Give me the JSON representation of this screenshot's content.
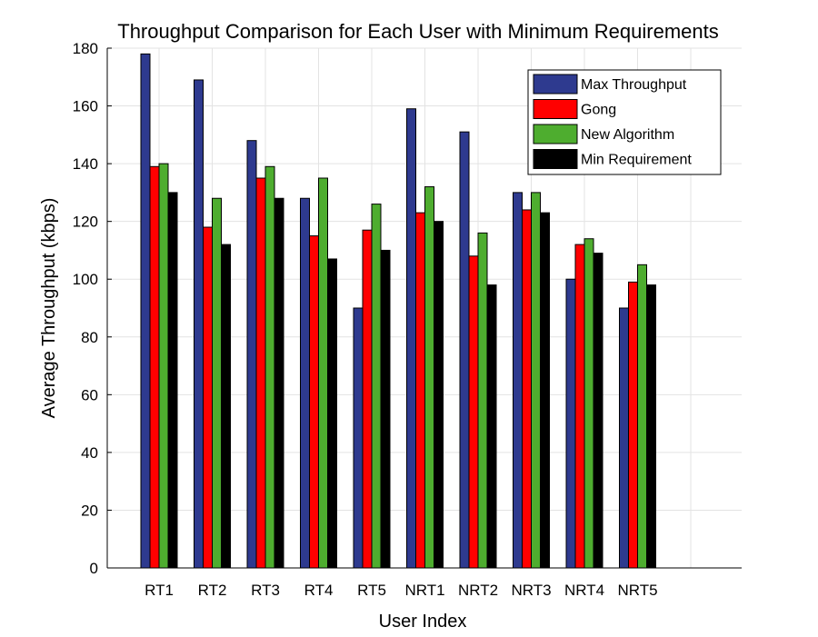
{
  "chart_data": {
    "type": "bar",
    "title": "Throughput Comparison for Each User with Minimum Requirements",
    "xlabel": "User Index",
    "ylabel": "Average Throughput (kbps)",
    "ylim": [
      0,
      180
    ],
    "yticks": [
      0,
      20,
      40,
      60,
      80,
      100,
      120,
      140,
      160,
      180
    ],
    "categories": [
      "RT1",
      "RT2",
      "RT3",
      "RT4",
      "RT5",
      "NRT1",
      "NRT2",
      "NRT3",
      "NRT4",
      "NRT5"
    ],
    "grid": true,
    "legend_position": "top-right",
    "series": [
      {
        "name": "Max Throughput",
        "color": "#2e3a8f",
        "values": [
          178,
          169,
          148,
          128,
          90,
          159,
          151,
          130,
          100,
          90
        ]
      },
      {
        "name": "Gong",
        "color": "#ff0000",
        "values": [
          139,
          118,
          135,
          115,
          117,
          123,
          108,
          124,
          112,
          99
        ]
      },
      {
        "name": "New Algorithm",
        "color": "#4ead2f",
        "values": [
          140,
          128,
          139,
          135,
          126,
          132,
          116,
          130,
          114,
          105
        ]
      },
      {
        "name": "Min Requirement",
        "color": "#000000",
        "values": [
          130,
          112,
          128,
          107,
          110,
          120,
          98,
          123,
          109,
          98
        ]
      }
    ]
  }
}
